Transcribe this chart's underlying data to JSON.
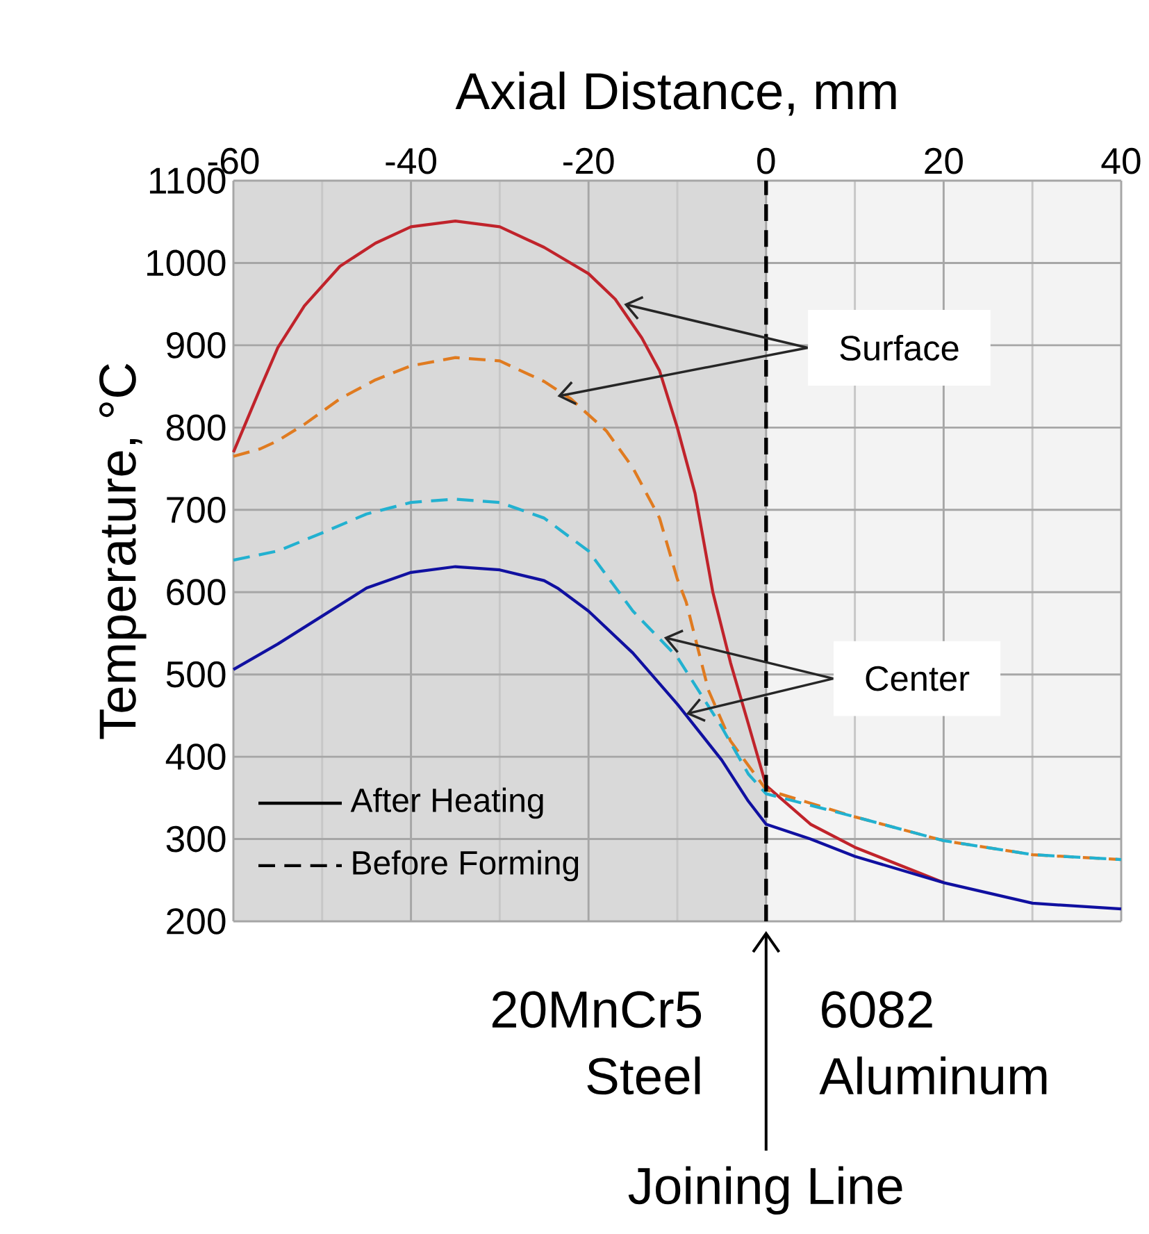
{
  "chart_data": {
    "type": "line",
    "xlabel": "Axial Distance, mm",
    "ylabel": "Temperature, °C",
    "xlim": [
      -60,
      40
    ],
    "ylim": [
      200,
      1100
    ],
    "xticks": [
      -60,
      {
        "value": -50,
        "label": null
      },
      -40,
      {
        "value": -30,
        "label": null
      },
      -20,
      {
        "value": -10,
        "label": null
      },
      0,
      {
        "value": 10,
        "label": null
      },
      20,
      {
        "value": 30,
        "label": null
      },
      40
    ],
    "yticks": [
      200,
      300,
      400,
      500,
      600,
      700,
      800,
      900,
      1000,
      1100
    ],
    "grid": true,
    "series": [
      {
        "color": "#c0232b",
        "line_style": "solid",
        "x": [
          -60,
          -57,
          -55,
          -52,
          -48,
          -44,
          -40,
          -35,
          -30,
          -25,
          -20,
          -17,
          -14,
          -12,
          -10,
          -8,
          -6,
          -4,
          -2,
          0,
          5,
          10,
          20
        ],
        "values": [
          770,
          847,
          897,
          948,
          996,
          1024,
          1044,
          1051,
          1044,
          1019,
          987,
          956,
          909,
          869,
          800,
          720,
          600,
          514,
          440,
          365,
          318,
          290,
          247
        ]
      },
      {
        "color": "#e07b20",
        "line_style": "dashed",
        "x": [
          -60,
          -57,
          -55,
          -52,
          -48,
          -44,
          -40,
          -35,
          -30,
          -25,
          -22,
          -18,
          -15,
          -12,
          -10,
          -9,
          -6.5,
          -4,
          0,
          10,
          20,
          30,
          40
        ],
        "values": [
          765,
          774,
          784,
          804,
          835,
          858,
          875,
          885,
          881,
          856,
          835,
          796,
          751,
          690,
          616,
          588,
          481,
          419,
          360,
          327,
          298,
          281,
          275
        ]
      },
      {
        "color": "#22b1d0",
        "line_style": "dashed",
        "x": [
          -60,
          -55,
          -50,
          -45,
          -40,
          -35,
          -30,
          -25,
          -20,
          -15,
          -10,
          -5,
          -2,
          0,
          10,
          20,
          30,
          40
        ],
        "values": [
          639,
          650,
          672,
          695,
          709,
          713,
          709,
          690,
          650,
          577,
          521,
          436,
          379,
          355,
          327,
          298,
          281,
          275
        ]
      },
      {
        "color": "#1010a0",
        "line_style": "solid",
        "x": [
          -60,
          -55,
          -50,
          -45,
          -40,
          -35,
          -30,
          -25,
          -23.5,
          -20,
          -15,
          -10,
          -5,
          -2,
          0,
          5,
          10,
          20,
          30,
          40
        ],
        "values": [
          506,
          537,
          571,
          605,
          624,
          631,
          627,
          614,
          605,
          577,
          526,
          464,
          396,
          346,
          318,
          300,
          279,
          247,
          222,
          215
        ]
      }
    ],
    "bands": [
      {
        "axis": "x",
        "from": -60,
        "to": 0,
        "label": "20MnCr5 Steel",
        "color": "#d9d9d9"
      },
      {
        "axis": "x",
        "from": 0,
        "to": 40,
        "label": "6082 Aluminum",
        "color": "#f3f3f3"
      }
    ],
    "ref_lines": [
      {
        "axis": "x",
        "value": 0,
        "label": "Joining Line",
        "color": "#000000",
        "line_style": "dashed"
      }
    ],
    "annotations": [
      {
        "text": "Surface",
        "x": -16,
        "y": 950
      },
      {
        "text": "Center",
        "x": -11.5,
        "y": 545
      },
      "After Heating",
      "Before Forming"
    ]
  }
}
